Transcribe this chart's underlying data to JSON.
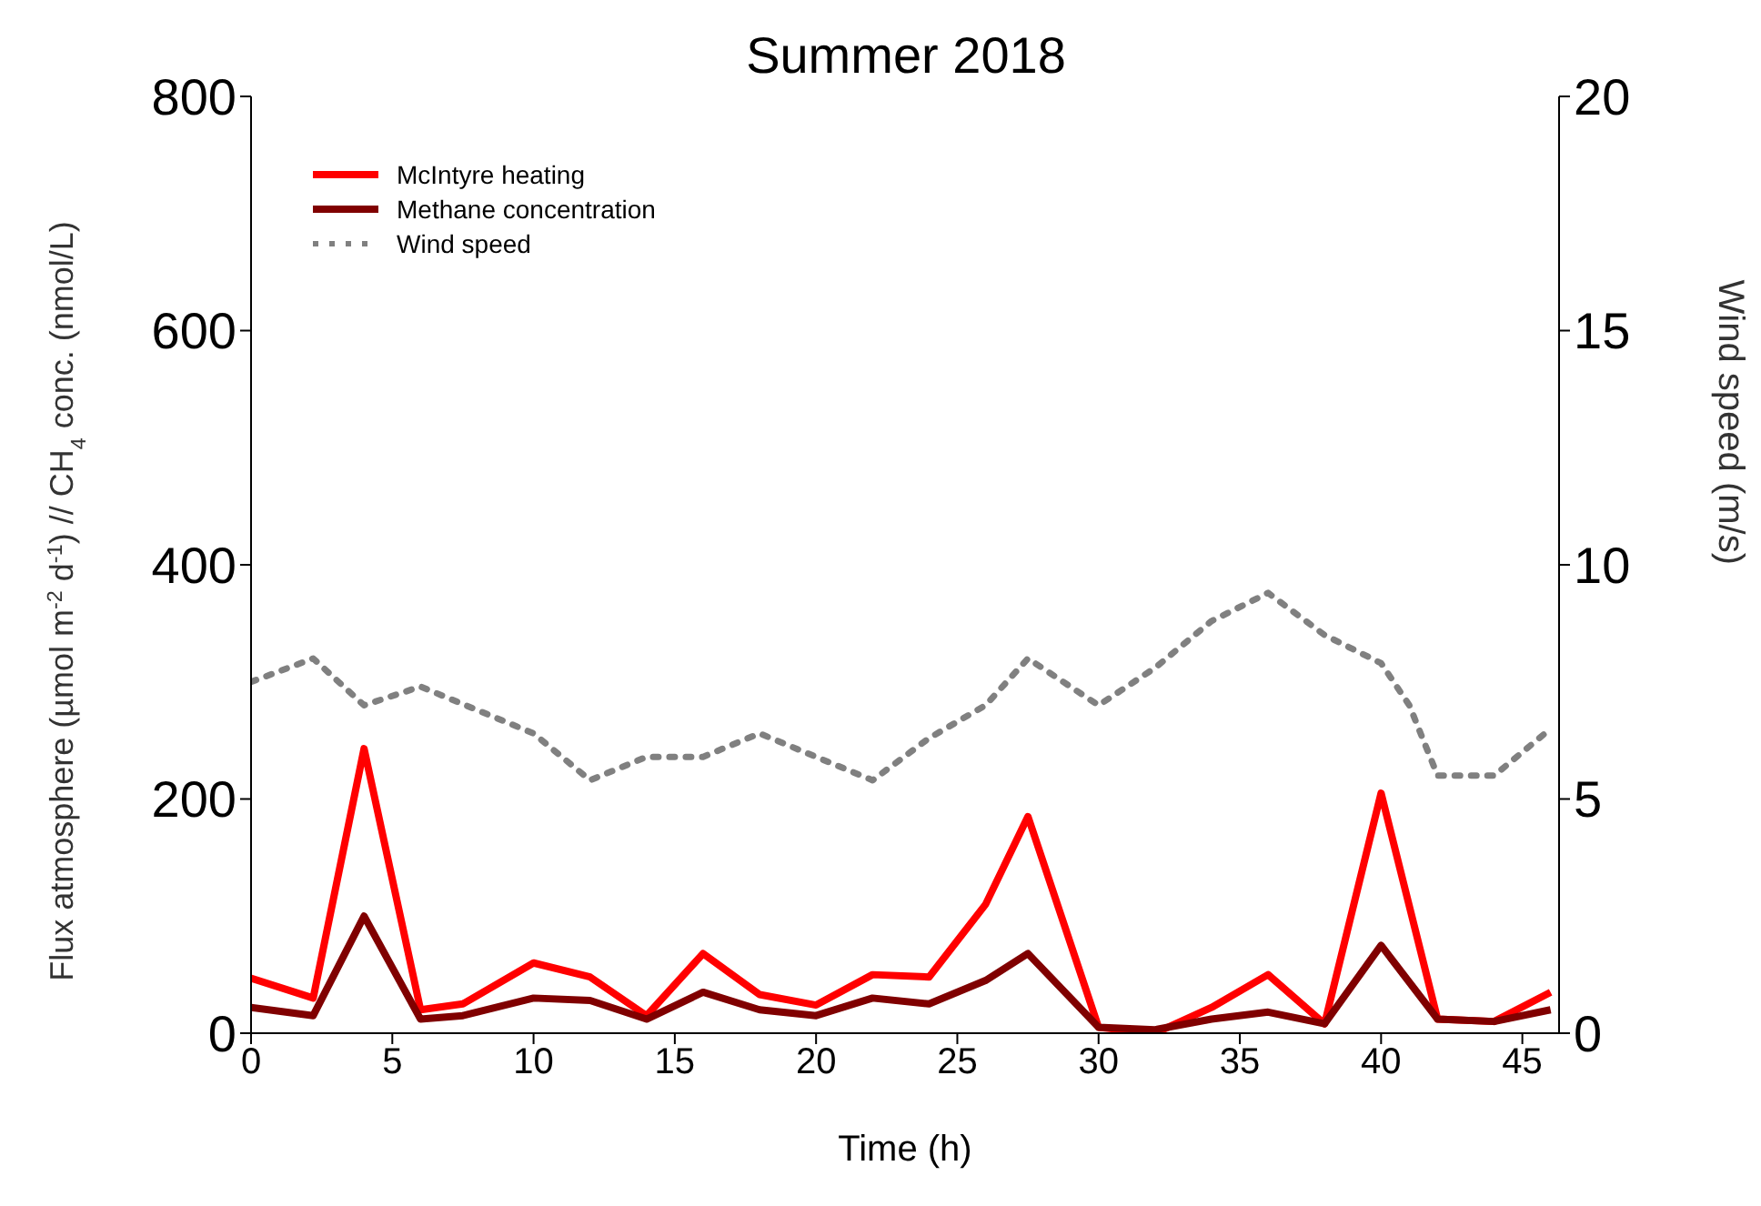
{
  "chart_data": {
    "type": "line",
    "title": "Summer 2018",
    "xlabel": "Time (h)",
    "ylabel": "Flux atmosphere (µmol m$^{-2}$ d$^{-1}$) // CH$_{4}$ conc. (nmol/L)",
    "y2label": "Wind speed (m/s)",
    "xlim": [
      0,
      46.3
    ],
    "xticks": [
      0,
      5,
      10,
      15,
      20,
      25,
      30,
      35,
      40,
      45
    ],
    "ylim": [
      0,
      800
    ],
    "yticks": [
      0,
      200,
      400,
      600,
      800
    ],
    "y2lim": [
      0,
      20
    ],
    "y2ticks": [
      0,
      5,
      10,
      15,
      20
    ],
    "legend": "top left",
    "grid": false,
    "marker": "none",
    "series": [
      {
        "name": "McIntyre heating",
        "color": "#ff0000",
        "line_style": "solid",
        "x": [
          0,
          2.2,
          4,
          6,
          7.5,
          10,
          12,
          14,
          16,
          18,
          20,
          22,
          24,
          26,
          27.5,
          30,
          32,
          34,
          36,
          38,
          40,
          42,
          44,
          46
        ],
        "values": [
          47,
          30,
          243,
          20,
          25,
          60,
          48,
          15,
          68,
          33,
          24,
          50,
          48,
          110,
          185,
          5,
          0,
          22,
          50,
          8,
          205,
          12,
          10,
          35
        ]
      },
      {
        "name": "Methane concentration",
        "color": "#800000",
        "line_style": "solid",
        "x": [
          0,
          2.2,
          4,
          6,
          7.5,
          10,
          12,
          14,
          16,
          18,
          20,
          22,
          24,
          26,
          27.5,
          30,
          32,
          34,
          36,
          38,
          40,
          42,
          44,
          46
        ],
        "values": [
          22,
          15,
          100,
          12,
          15,
          30,
          28,
          12,
          35,
          20,
          15,
          30,
          25,
          45,
          68,
          5,
          3,
          12,
          18,
          8,
          75,
          12,
          10,
          20
        ]
      },
      {
        "name": "Wind speed",
        "color": "#808080",
        "line_style": "dotted",
        "axis": "y2",
        "x": [
          0,
          2.2,
          4,
          6,
          10,
          12,
          14,
          16,
          18,
          22,
          24,
          26,
          27.5,
          30,
          32,
          34,
          36,
          38,
          40,
          41,
          42,
          44,
          46
        ],
        "values": [
          7.5,
          8.0,
          7.0,
          7.4,
          6.4,
          5.4,
          5.9,
          5.9,
          6.4,
          5.4,
          6.3,
          7.0,
          8.0,
          7.0,
          7.8,
          8.8,
          9.4,
          8.5,
          7.9,
          7.0,
          5.5,
          5.5,
          6.5
        ]
      }
    ]
  }
}
